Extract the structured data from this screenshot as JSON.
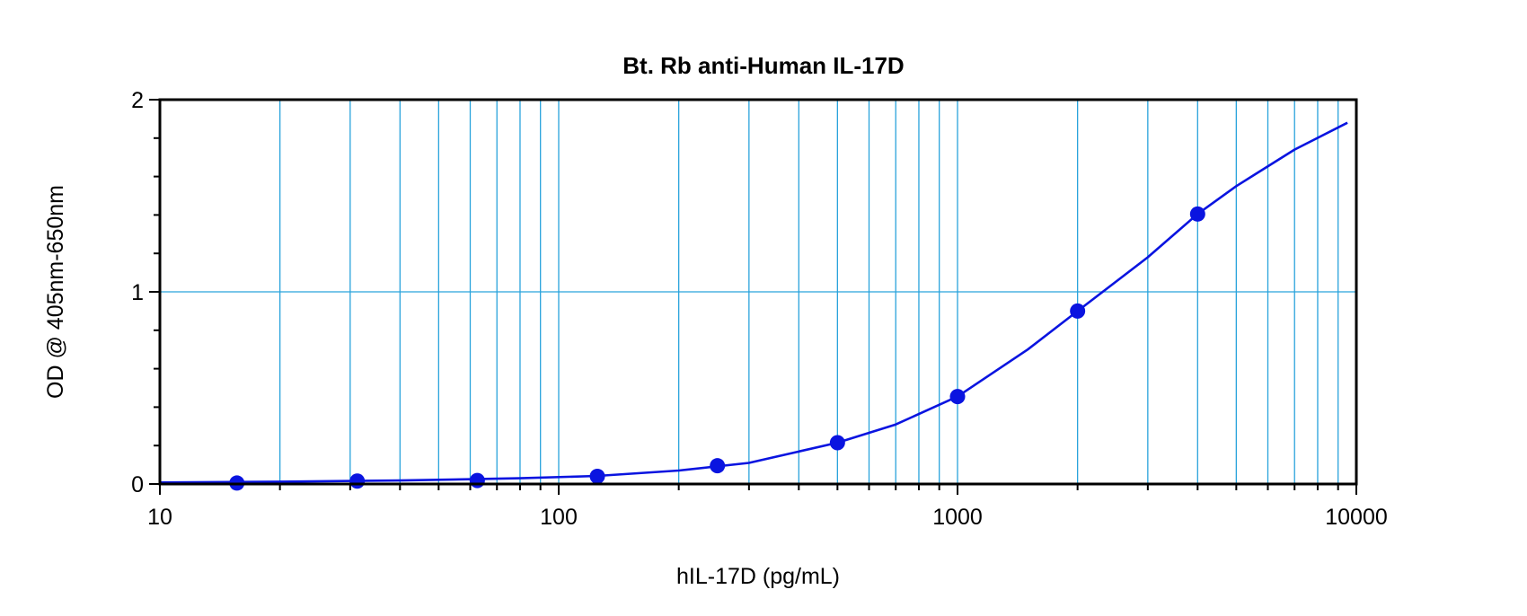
{
  "chart_data": {
    "type": "scatter",
    "title": "Bt. Rb anti-Human IL-17D",
    "xlabel": "hIL-17D (pg/mL)",
    "ylabel": "OD @ 405nm-650nm",
    "x_scale": "log",
    "xlim": [
      10,
      10000
    ],
    "ylim": [
      0,
      2
    ],
    "x_ticks": [
      "10",
      "100",
      "1000",
      "10000"
    ],
    "y_ticks": [
      "0",
      "1",
      "2"
    ],
    "grid": true,
    "colors": {
      "grid": "#29a3dc",
      "series": "#0a14e0",
      "axis": "#000000"
    },
    "series": [
      {
        "kind": "points",
        "x": [
          15.6,
          31.25,
          62.5,
          125,
          250,
          500,
          1000,
          2000,
          4000
        ],
        "y": [
          0.005,
          0.015,
          0.018,
          0.04,
          0.095,
          0.215,
          0.455,
          0.9,
          1.405
        ]
      },
      {
        "kind": "fitted-curve",
        "x": [
          10,
          20,
          40,
          80,
          125,
          200,
          300,
          500,
          700,
          1000,
          1500,
          2000,
          3000,
          4000,
          5000,
          7000,
          9500
        ],
        "y": [
          0.008,
          0.012,
          0.018,
          0.03,
          0.042,
          0.07,
          0.11,
          0.215,
          0.31,
          0.455,
          0.7,
          0.9,
          1.18,
          1.405,
          1.55,
          1.74,
          1.88
        ]
      }
    ]
  }
}
